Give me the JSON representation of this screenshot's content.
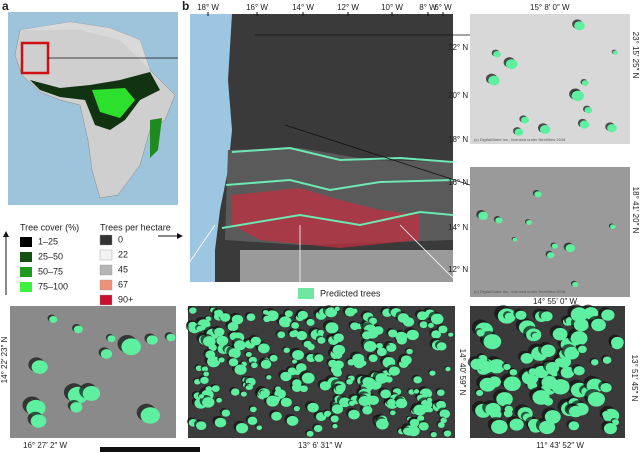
{
  "panel_a": {
    "label": "a",
    "legend_tree_cover": {
      "title": "Tree cover (%)",
      "items": [
        "1–25",
        "25–50",
        "50–75",
        "75–100"
      ]
    }
  },
  "panel_b": {
    "label": "b",
    "lon_ticks": [
      "18° W",
      "16° W",
      "14° W",
      "12° W",
      "10° W",
      "8° W",
      "6° W"
    ],
    "lat_ticks": [
      "22° N",
      "20° N",
      "18° N",
      "16° N",
      "14° N",
      "12° N"
    ],
    "legend_trees_per_hectare": {
      "title": "Trees per hectare",
      "items": [
        "0",
        "22",
        "45",
        "67",
        "90+"
      ]
    },
    "predicted_trees": "Predicted trees"
  },
  "insets": [
    {
      "lon": "15° 8′ 0″ W",
      "lat": "23° 15′ 25″ N",
      "credit": "(c) DigitalGlobe Inc., licensed under NextView 2018"
    },
    {
      "lon": "14° 55′ 0″ W",
      "lat": "18° 41′ 20″ N",
      "credit": "(c) DigitalGlobe Inc., licensed under NextView 2018"
    },
    {
      "lon": "16° 27′ 2″ W",
      "lat": "14° 22′ 23″ N"
    },
    {
      "lon": "13° 6′ 31″ W",
      "lat": "14° 40′ 59″ N"
    },
    {
      "lon": "11° 43′ 52″ W",
      "lat": "13° 51′ 45″ N"
    }
  ]
}
